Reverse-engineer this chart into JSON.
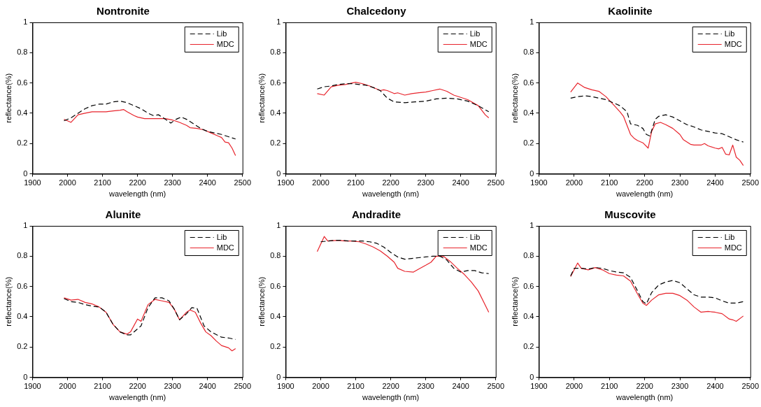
{
  "chart_data": [
    {
      "type": "line",
      "title": "Nontronite",
      "xlabel": "wavelength (nm)",
      "ylabel": "reflectance(%)",
      "xlim": [
        1900,
        2500
      ],
      "xticks": [
        1900,
        2000,
        2100,
        2200,
        2300,
        2400,
        2500
      ],
      "ylim": [
        0,
        1
      ],
      "yticks": [
        0,
        0.2,
        0.4,
        0.6,
        0.8,
        1
      ],
      "grid": false,
      "legend": "top right",
      "marker": "none",
      "series": [
        {
          "name": "Lib",
          "color": "#000000",
          "line_style": "dashed",
          "x": [
            1990,
            2010,
            2030,
            2050,
            2070,
            2090,
            2110,
            2130,
            2150,
            2170,
            2190,
            2210,
            2230,
            2245,
            2260,
            2280,
            2295,
            2310,
            2325,
            2340,
            2360,
            2380,
            2400,
            2420,
            2440,
            2460,
            2480
          ],
          "values": [
            0.35,
            0.37,
            0.4,
            0.43,
            0.45,
            0.46,
            0.46,
            0.475,
            0.48,
            0.47,
            0.45,
            0.43,
            0.4,
            0.385,
            0.39,
            0.36,
            0.335,
            0.36,
            0.375,
            0.36,
            0.33,
            0.3,
            0.28,
            0.27,
            0.26,
            0.245,
            0.23
          ]
        },
        {
          "name": "MDC",
          "color": "#e8242c",
          "line_style": "solid",
          "x": [
            1990,
            2000,
            2010,
            2030,
            2050,
            2070,
            2090,
            2110,
            2130,
            2150,
            2160,
            2170,
            2190,
            2200,
            2220,
            2240,
            2260,
            2280,
            2300,
            2320,
            2340,
            2350,
            2370,
            2390,
            2410,
            2430,
            2440,
            2450,
            2460,
            2470,
            2480
          ],
          "values": [
            0.36,
            0.35,
            0.34,
            0.39,
            0.4,
            0.41,
            0.41,
            0.41,
            0.415,
            0.42,
            0.425,
            0.41,
            0.385,
            0.375,
            0.365,
            0.365,
            0.365,
            0.365,
            0.355,
            0.34,
            0.32,
            0.305,
            0.3,
            0.29,
            0.27,
            0.25,
            0.24,
            0.21,
            0.205,
            0.17,
            0.12
          ]
        }
      ]
    },
    {
      "type": "line",
      "title": "Chalcedony",
      "xlabel": "wavelength (nm)",
      "ylabel": "reflectance(%)",
      "xlim": [
        1900,
        2500
      ],
      "xticks": [
        1900,
        2000,
        2100,
        2200,
        2300,
        2400,
        2500
      ],
      "ylim": [
        0,
        1
      ],
      "yticks": [
        0,
        0.2,
        0.4,
        0.6,
        0.8,
        1
      ],
      "grid": false,
      "legend": "top right",
      "marker": "none",
      "series": [
        {
          "name": "Lib",
          "color": "#000000",
          "line_style": "dashed",
          "x": [
            1990,
            2010,
            2030,
            2050,
            2070,
            2090,
            2110,
            2130,
            2150,
            2170,
            2190,
            2210,
            2240,
            2270,
            2300,
            2330,
            2360,
            2390,
            2420,
            2450,
            2480
          ],
          "values": [
            0.56,
            0.575,
            0.58,
            0.59,
            0.595,
            0.595,
            0.59,
            0.585,
            0.57,
            0.55,
            0.5,
            0.475,
            0.47,
            0.475,
            0.48,
            0.495,
            0.5,
            0.495,
            0.48,
            0.45,
            0.41
          ]
        },
        {
          "name": "MDC",
          "color": "#e8242c",
          "line_style": "solid",
          "x": [
            1990,
            2010,
            2030,
            2050,
            2070,
            2090,
            2100,
            2120,
            2140,
            2160,
            2170,
            2180,
            2190,
            2210,
            2220,
            2240,
            2260,
            2280,
            2300,
            2320,
            2340,
            2360,
            2380,
            2400,
            2420,
            2450,
            2460,
            2470,
            2480
          ],
          "values": [
            0.53,
            0.52,
            0.575,
            0.585,
            0.59,
            0.6,
            0.605,
            0.595,
            0.58,
            0.56,
            0.55,
            0.555,
            0.55,
            0.53,
            0.535,
            0.52,
            0.53,
            0.535,
            0.54,
            0.55,
            0.56,
            0.545,
            0.52,
            0.505,
            0.49,
            0.45,
            0.42,
            0.39,
            0.37
          ]
        }
      ]
    },
    {
      "type": "line",
      "title": "Kaolinite",
      "xlabel": "wavelength (nm)",
      "ylabel": "reflectance(%)",
      "xlim": [
        1900,
        2500
      ],
      "xticks": [
        1900,
        2000,
        2100,
        2200,
        2300,
        2400,
        2500
      ],
      "ylim": [
        0,
        1
      ],
      "yticks": [
        0,
        0.2,
        0.4,
        0.6,
        0.8,
        1
      ],
      "grid": false,
      "legend": "top right",
      "marker": "none",
      "series": [
        {
          "name": "Lib",
          "color": "#000000",
          "line_style": "dashed",
          "x": [
            1990,
            2010,
            2030,
            2050,
            2070,
            2090,
            2110,
            2130,
            2150,
            2160,
            2180,
            2195,
            2205,
            2215,
            2230,
            2240,
            2260,
            2280,
            2300,
            2320,
            2340,
            2360,
            2380,
            2400,
            2420,
            2440,
            2460,
            2480
          ],
          "values": [
            0.5,
            0.51,
            0.515,
            0.51,
            0.5,
            0.49,
            0.47,
            0.45,
            0.41,
            0.33,
            0.32,
            0.3,
            0.26,
            0.25,
            0.36,
            0.38,
            0.39,
            0.375,
            0.35,
            0.325,
            0.31,
            0.29,
            0.28,
            0.27,
            0.265,
            0.245,
            0.225,
            0.21
          ]
        },
        {
          "name": "MDC",
          "color": "#e8242c",
          "line_style": "solid",
          "x": [
            1990,
            2010,
            2030,
            2050,
            2070,
            2090,
            2110,
            2130,
            2140,
            2150,
            2160,
            2170,
            2180,
            2195,
            2210,
            2220,
            2230,
            2245,
            2260,
            2280,
            2300,
            2310,
            2330,
            2340,
            2360,
            2370,
            2380,
            2400,
            2410,
            2420,
            2430,
            2440,
            2450,
            2460,
            2470,
            2480
          ],
          "values": [
            0.54,
            0.6,
            0.57,
            0.555,
            0.545,
            0.51,
            0.46,
            0.41,
            0.38,
            0.32,
            0.26,
            0.235,
            0.22,
            0.205,
            0.17,
            0.28,
            0.33,
            0.34,
            0.325,
            0.3,
            0.26,
            0.225,
            0.195,
            0.19,
            0.19,
            0.2,
            0.185,
            0.17,
            0.165,
            0.175,
            0.13,
            0.125,
            0.19,
            0.11,
            0.09,
            0.055
          ]
        }
      ]
    },
    {
      "type": "line",
      "title": "Alunite",
      "xlabel": "wavelength (nm)",
      "ylabel": "reflectance(%)",
      "xlim": [
        1900,
        2500
      ],
      "xticks": [
        1900,
        2000,
        2100,
        2200,
        2300,
        2400,
        2500
      ],
      "ylim": [
        0,
        1
      ],
      "yticks": [
        0,
        0.2,
        0.4,
        0.6,
        0.8,
        1
      ],
      "grid": false,
      "legend": "top right",
      "marker": "none",
      "series": [
        {
          "name": "Lib",
          "color": "#000000",
          "line_style": "dashed",
          "x": [
            1990,
            2010,
            2030,
            2050,
            2070,
            2090,
            2110,
            2130,
            2150,
            2170,
            2180,
            2195,
            2210,
            2230,
            2250,
            2270,
            2290,
            2305,
            2320,
            2340,
            2355,
            2370,
            2390,
            2410,
            2440,
            2460,
            2480
          ],
          "values": [
            0.52,
            0.5,
            0.495,
            0.48,
            0.47,
            0.465,
            0.43,
            0.35,
            0.3,
            0.28,
            0.28,
            0.31,
            0.34,
            0.46,
            0.525,
            0.525,
            0.505,
            0.45,
            0.38,
            0.42,
            0.46,
            0.455,
            0.34,
            0.3,
            0.265,
            0.26,
            0.25
          ]
        },
        {
          "name": "MDC",
          "color": "#e8242c",
          "line_style": "solid",
          "x": [
            1990,
            2010,
            2030,
            2050,
            2070,
            2090,
            2110,
            2130,
            2150,
            2170,
            2180,
            2200,
            2210,
            2230,
            2250,
            2270,
            2290,
            2305,
            2320,
            2340,
            2350,
            2365,
            2380,
            2395,
            2410,
            2425,
            2440,
            2460,
            2470,
            2480
          ],
          "values": [
            0.525,
            0.51,
            0.515,
            0.495,
            0.485,
            0.465,
            0.43,
            0.35,
            0.3,
            0.285,
            0.3,
            0.385,
            0.37,
            0.48,
            0.515,
            0.505,
            0.495,
            0.45,
            0.38,
            0.43,
            0.445,
            0.43,
            0.36,
            0.3,
            0.275,
            0.24,
            0.21,
            0.195,
            0.175,
            0.19
          ]
        }
      ]
    },
    {
      "type": "line",
      "title": "Andradite",
      "xlabel": "wavelength (nm)",
      "ylabel": "reflectance(%)",
      "xlim": [
        1900,
        2500
      ],
      "xticks": [
        1900,
        2000,
        2100,
        2200,
        2300,
        2400,
        2500
      ],
      "ylim": [
        0,
        1
      ],
      "yticks": [
        0,
        0.2,
        0.4,
        0.6,
        0.8,
        1
      ],
      "grid": false,
      "legend": "top right",
      "marker": "none",
      "series": [
        {
          "name": "Lib",
          "color": "#000000",
          "line_style": "dashed",
          "x": [
            2000,
            2020,
            2040,
            2060,
            2080,
            2100,
            2120,
            2140,
            2160,
            2180,
            2200,
            2220,
            2240,
            2260,
            2280,
            2300,
            2320,
            2340,
            2360,
            2380,
            2400,
            2420,
            2440,
            2460,
            2480
          ],
          "values": [
            0.895,
            0.9,
            0.905,
            0.905,
            0.9,
            0.9,
            0.9,
            0.895,
            0.885,
            0.86,
            0.825,
            0.795,
            0.78,
            0.785,
            0.79,
            0.795,
            0.8,
            0.8,
            0.775,
            0.72,
            0.695,
            0.705,
            0.705,
            0.69,
            0.685
          ]
        },
        {
          "name": "MDC",
          "color": "#e8242c",
          "line_style": "solid",
          "x": [
            1990,
            2010,
            2020,
            2050,
            2070,
            2090,
            2110,
            2130,
            2150,
            2170,
            2190,
            2210,
            2220,
            2240,
            2265,
            2280,
            2300,
            2315,
            2330,
            2350,
            2370,
            2390,
            2410,
            2430,
            2450,
            2465,
            2480
          ],
          "values": [
            0.83,
            0.93,
            0.9,
            0.905,
            0.9,
            0.9,
            0.895,
            0.88,
            0.86,
            0.835,
            0.8,
            0.76,
            0.72,
            0.7,
            0.695,
            0.715,
            0.74,
            0.76,
            0.8,
            0.8,
            0.765,
            0.72,
            0.68,
            0.63,
            0.57,
            0.5,
            0.43
          ]
        }
      ]
    },
    {
      "type": "line",
      "title": "Muscovite",
      "xlabel": "wavelength (nm)",
      "ylabel": "reflectance(%)",
      "xlim": [
        1900,
        2500
      ],
      "xticks": [
        1900,
        2000,
        2100,
        2200,
        2300,
        2400,
        2500
      ],
      "ylim": [
        0,
        1
      ],
      "yticks": [
        0,
        0.2,
        0.4,
        0.6,
        0.8,
        1
      ],
      "grid": false,
      "legend": "top right",
      "marker": "none",
      "series": [
        {
          "name": "Lib",
          "color": "#000000",
          "line_style": "dashed",
          "x": [
            1990,
            2000,
            2020,
            2040,
            2060,
            2080,
            2100,
            2120,
            2140,
            2160,
            2180,
            2195,
            2205,
            2220,
            2240,
            2260,
            2280,
            2300,
            2320,
            2340,
            2360,
            2380,
            2400,
            2420,
            2440,
            2460,
            2480
          ],
          "values": [
            0.67,
            0.72,
            0.72,
            0.715,
            0.725,
            0.72,
            0.705,
            0.695,
            0.69,
            0.66,
            0.57,
            0.5,
            0.485,
            0.56,
            0.61,
            0.63,
            0.64,
            0.625,
            0.585,
            0.545,
            0.53,
            0.53,
            0.525,
            0.505,
            0.49,
            0.49,
            0.5
          ]
        },
        {
          "name": "MDC",
          "color": "#e8242c",
          "line_style": "solid",
          "x": [
            1990,
            2010,
            2020,
            2040,
            2060,
            2080,
            2100,
            2120,
            2140,
            2160,
            2180,
            2195,
            2205,
            2220,
            2240,
            2260,
            2280,
            2300,
            2320,
            2340,
            2360,
            2380,
            2400,
            2420,
            2440,
            2450,
            2460,
            2480
          ],
          "values": [
            0.665,
            0.755,
            0.72,
            0.71,
            0.725,
            0.71,
            0.685,
            0.675,
            0.67,
            0.635,
            0.55,
            0.49,
            0.475,
            0.51,
            0.545,
            0.555,
            0.555,
            0.54,
            0.51,
            0.465,
            0.43,
            0.435,
            0.43,
            0.42,
            0.385,
            0.38,
            0.37,
            0.405
          ]
        }
      ]
    }
  ]
}
